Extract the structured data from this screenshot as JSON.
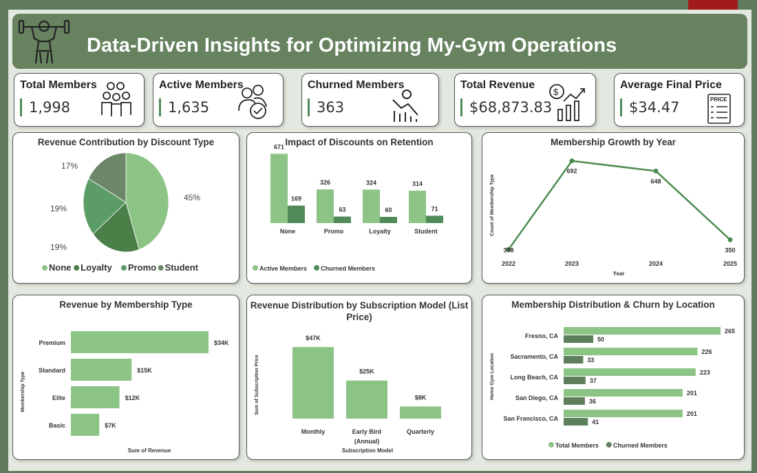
{
  "header": {
    "title": "Data-Driven Insights for Optimizing My-Gym Operations",
    "logo_icon": "weightlifter-icon"
  },
  "kpis": [
    {
      "label": "Total Members",
      "value": "1,998",
      "icon": "group-people-icon"
    },
    {
      "label": "Active Members",
      "value": "1,635",
      "icon": "users-check-icon"
    },
    {
      "label": "Churned Members",
      "value": "363",
      "icon": "declining-chart-person-icon"
    },
    {
      "label": "Total Revenue",
      "value": "$68,873.83",
      "icon": "dollar-growth-chart-icon"
    },
    {
      "label": "Average Final Price",
      "value": "$34.47",
      "icon": "price-tag-list-icon"
    }
  ],
  "colors": {
    "light": "#8cc485",
    "dark": "#4f8a58",
    "churn_loc": "#5e7f5b",
    "student": "#6b8768",
    "promo": "#5c9c66",
    "loyalty": "#4a7f48",
    "line": "#4a8a4e"
  },
  "chart_data": [
    {
      "type": "pie",
      "title": "Revenue Contribution by Discount Type",
      "categories": [
        "None",
        "Loyalty",
        "Promo",
        "Student"
      ],
      "values": [
        45,
        19,
        19,
        17
      ],
      "labels": [
        "45%",
        "19%",
        "19%",
        "17%"
      ],
      "legend": "bottom"
    },
    {
      "type": "bar",
      "title": "Impact of Discounts on Retention",
      "categories": [
        "None",
        "Promo",
        "Loyalty",
        "Student"
      ],
      "series": [
        {
          "name": "Active Members",
          "values": [
            671,
            326,
            324,
            314
          ]
        },
        {
          "name": "Churned Members",
          "values": [
            169,
            63,
            60,
            71
          ]
        }
      ],
      "legend": "bottom-left"
    },
    {
      "type": "line",
      "title": "Membership Growth by Year",
      "xlabel": "Year",
      "ylabel": "Count of Membership Type",
      "categories": [
        "2022",
        "2023",
        "2024",
        "2025"
      ],
      "values": [
        308,
        692,
        648,
        350
      ]
    },
    {
      "type": "bar",
      "orientation": "horizontal",
      "title": "Revenue by Membership Type",
      "xlabel": "Sum of Revenue",
      "ylabel": "Membership Type",
      "categories": [
        "Premium",
        "Standard",
        "Elite",
        "Basic"
      ],
      "values": [
        34,
        15,
        12,
        7
      ],
      "labels": [
        "$34K",
        "$15K",
        "$12K",
        "$7K"
      ]
    },
    {
      "type": "bar",
      "title": "Revenue Distribution by Subscription Model (List Price)",
      "xlabel": "Subscription Model",
      "ylabel": "Sum of Subscription Price",
      "categories": [
        "Monthly",
        "Early Bird (Annual)",
        "Quarterly"
      ],
      "values": [
        47,
        25,
        8
      ],
      "labels": [
        "$47K",
        "$25K",
        "$8K"
      ]
    },
    {
      "type": "bar",
      "orientation": "horizontal",
      "title": "Membership Distribution & Churn by Location",
      "ylabel": "Home Gym Location",
      "categories": [
        "Fresno, CA",
        "Sacramento, CA",
        "Long Beach, CA",
        "San Diego, CA",
        "San Francisco, CA"
      ],
      "series": [
        {
          "name": "Total Members",
          "values": [
            265,
            226,
            223,
            201,
            201
          ]
        },
        {
          "name": "Churned Members",
          "values": [
            50,
            33,
            37,
            36,
            41
          ]
        }
      ],
      "legend": "bottom"
    }
  ]
}
